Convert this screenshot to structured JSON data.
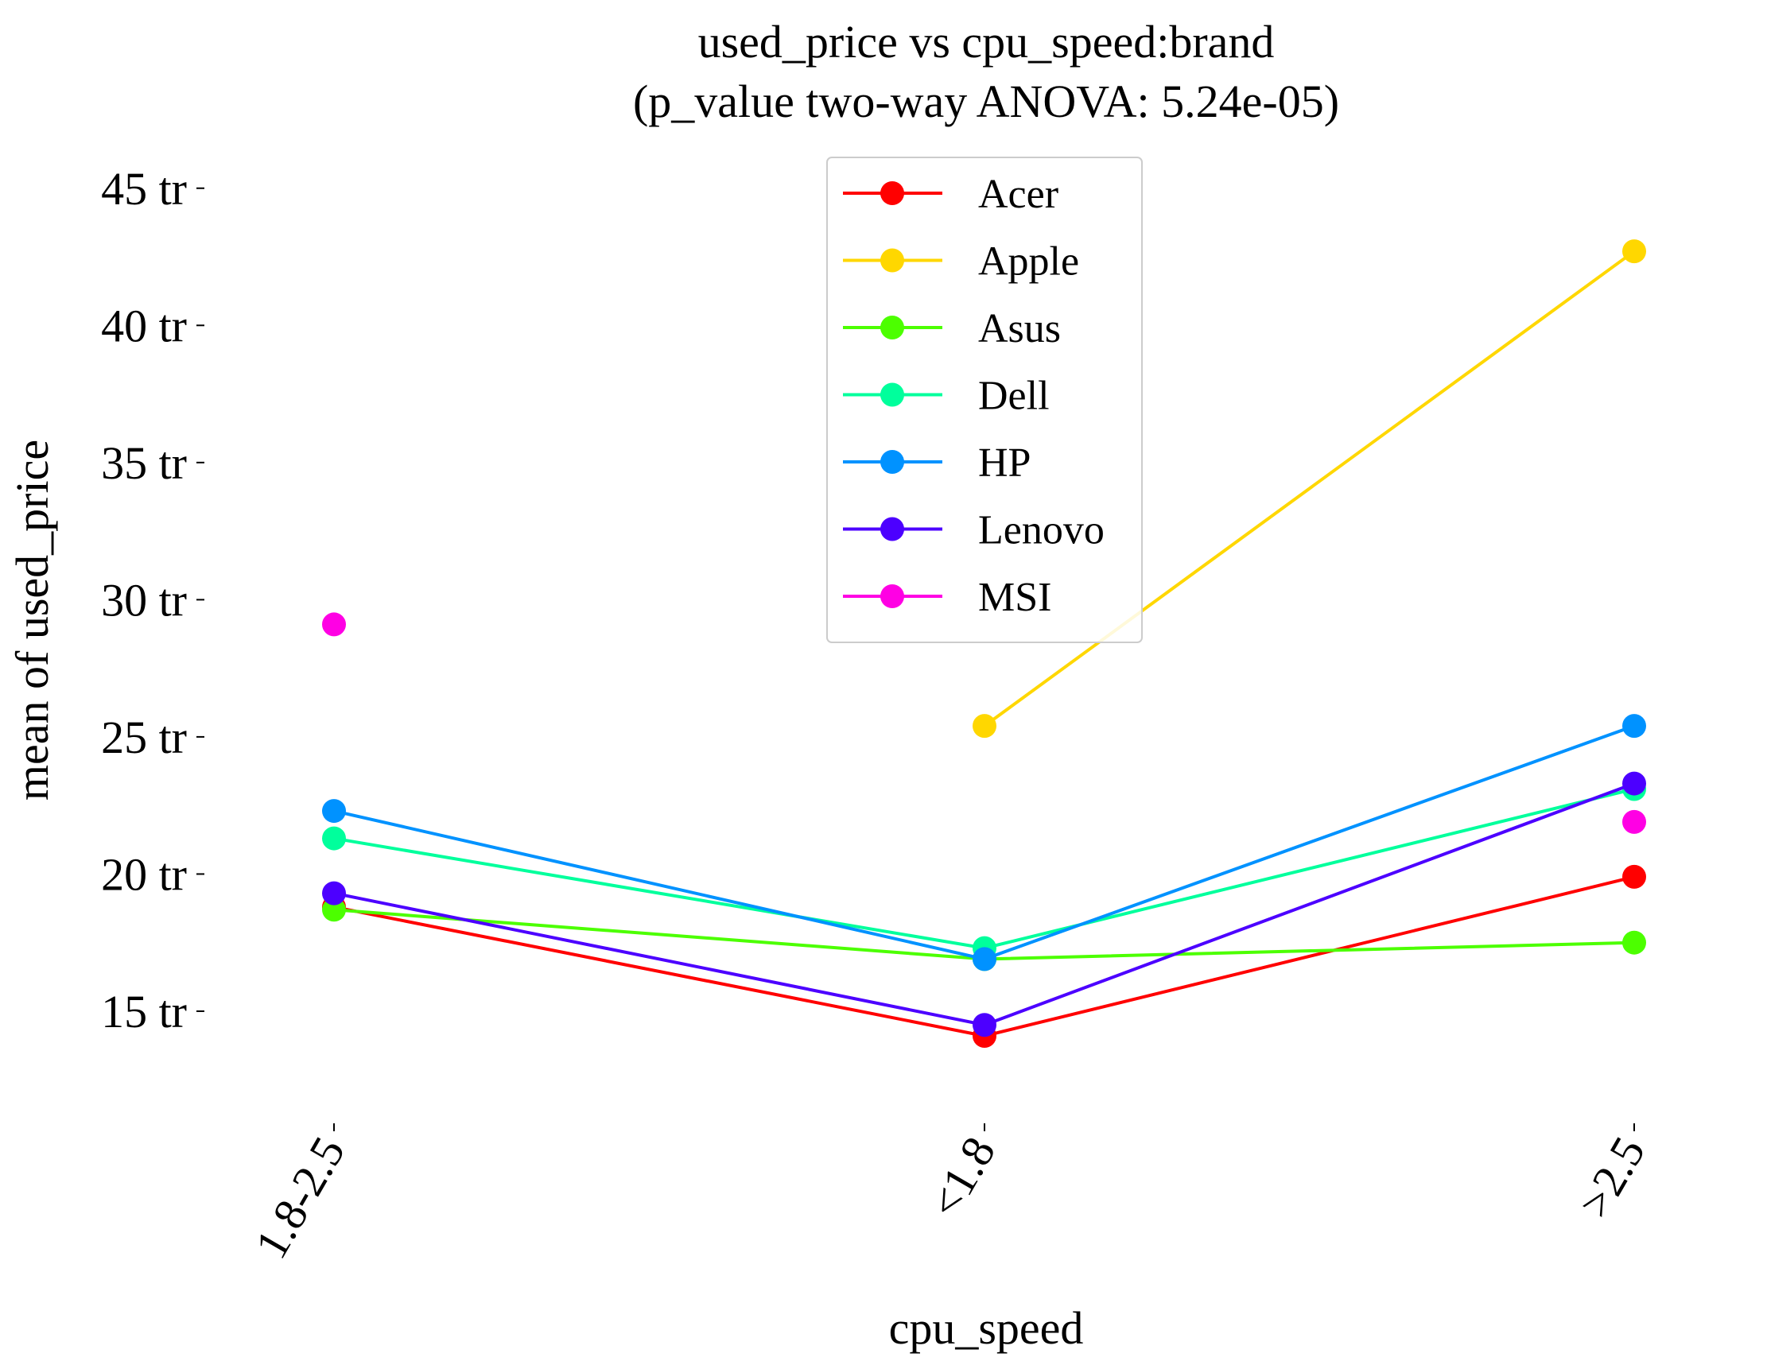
{
  "chart_data": {
    "type": "line",
    "title": "used_price vs cpu_speed:brand",
    "subtitle": "(p_value two-way ANOVA: 5.24e-05)",
    "xlabel": "cpu_speed",
    "ylabel": "mean of used_price",
    "categories": [
      "1.8-2.5",
      "<1.8",
      ">2.5"
    ],
    "ylim": [
      11,
      46.5
    ],
    "yticks": [
      {
        "value": 15,
        "label": "15 tr"
      },
      {
        "value": 20,
        "label": "20 tr"
      },
      {
        "value": 25,
        "label": "25 tr"
      },
      {
        "value": 30,
        "label": "30 tr"
      },
      {
        "value": 35,
        "label": "35 tr"
      },
      {
        "value": 40,
        "label": "40 tr"
      },
      {
        "value": 45,
        "label": "45 tr"
      }
    ],
    "grid": false,
    "legend": "top-center",
    "series": [
      {
        "name": "Acer",
        "color": "#ff0000",
        "values": [
          18.8,
          14.1,
          19.9
        ]
      },
      {
        "name": "Apple",
        "color": "#ffd700",
        "values": [
          null,
          25.4,
          42.7
        ]
      },
      {
        "name": "Asus",
        "color": "#4cff00",
        "values": [
          18.7,
          16.9,
          17.5
        ]
      },
      {
        "name": "Dell",
        "color": "#00ff9c",
        "values": [
          21.3,
          17.3,
          23.1
        ]
      },
      {
        "name": "HP",
        "color": "#0092ff",
        "values": [
          22.3,
          16.9,
          25.4
        ]
      },
      {
        "name": "Lenovo",
        "color": "#4c00ff",
        "values": [
          19.3,
          14.5,
          23.3
        ]
      },
      {
        "name": "MSI",
        "color": "#ff00e4",
        "values": [
          29.1,
          null,
          21.9
        ]
      }
    ]
  }
}
